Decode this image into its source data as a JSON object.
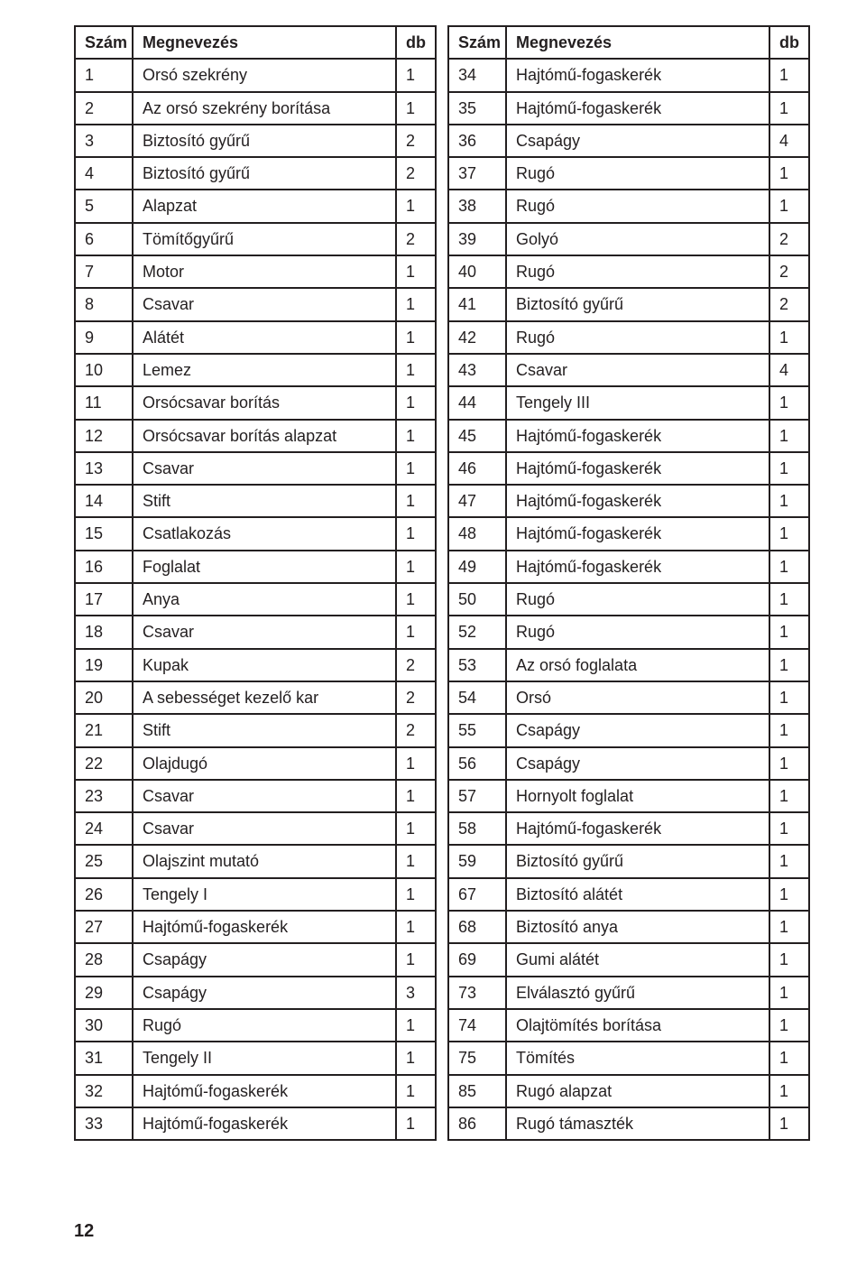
{
  "headers": {
    "szam": "Szám",
    "megnevezes": "Megnevezés",
    "db": "db"
  },
  "left": [
    {
      "n": "1",
      "name": "Orsó szekrény",
      "db": "1"
    },
    {
      "n": "2",
      "name": "Az orsó szekrény borítása",
      "db": "1"
    },
    {
      "n": "3",
      "name": "Biztosító gyűrű",
      "db": "2"
    },
    {
      "n": "4",
      "name": "Biztosító gyűrű",
      "db": "2"
    },
    {
      "n": "5",
      "name": "Alapzat",
      "db": "1"
    },
    {
      "n": "6",
      "name": "Tömítőgyűrű",
      "db": "2"
    },
    {
      "n": "7",
      "name": "Motor",
      "db": "1"
    },
    {
      "n": "8",
      "name": "Csavar",
      "db": "1"
    },
    {
      "n": "9",
      "name": "Alátét",
      "db": "1"
    },
    {
      "n": "10",
      "name": "Lemez",
      "db": "1"
    },
    {
      "n": "11",
      "name": "Orsócsavar borítás",
      "db": "1"
    },
    {
      "n": "12",
      "name": "Orsócsavar borítás alapzat",
      "db": "1"
    },
    {
      "n": "13",
      "name": "Csavar",
      "db": "1"
    },
    {
      "n": "14",
      "name": "Stift",
      "db": "1"
    },
    {
      "n": "15",
      "name": "Csatlakozás",
      "db": "1"
    },
    {
      "n": "16",
      "name": "Foglalat",
      "db": "1"
    },
    {
      "n": "17",
      "name": "Anya",
      "db": "1"
    },
    {
      "n": "18",
      "name": "Csavar",
      "db": "1"
    },
    {
      "n": "19",
      "name": "Kupak",
      "db": "2"
    },
    {
      "n": "20",
      "name": "A sebességet kezelő kar",
      "db": "2"
    },
    {
      "n": "21",
      "name": "Stift",
      "db": "2"
    },
    {
      "n": "22",
      "name": "Olajdugó",
      "db": "1"
    },
    {
      "n": "23",
      "name": "Csavar",
      "db": "1"
    },
    {
      "n": "24",
      "name": "Csavar",
      "db": "1"
    },
    {
      "n": "25",
      "name": "Olajszint mutató",
      "db": "1"
    },
    {
      "n": "26",
      "name": "Tengely I",
      "db": "1"
    },
    {
      "n": "27",
      "name": "Hajtómű-fogaskerék",
      "db": "1"
    },
    {
      "n": "28",
      "name": "Csapágy",
      "db": "1"
    },
    {
      "n": "29",
      "name": "Csapágy",
      "db": "3"
    },
    {
      "n": "30",
      "name": "Rugó",
      "db": "1"
    },
    {
      "n": "31",
      "name": "Tengely II",
      "db": "1"
    },
    {
      "n": "32",
      "name": "Hajtómű-fogaskerék",
      "db": "1"
    },
    {
      "n": "33",
      "name": "Hajtómű-fogaskerék",
      "db": "1"
    }
  ],
  "right": [
    {
      "n": "34",
      "name": "Hajtómű-fogaskerék",
      "db": "1"
    },
    {
      "n": "35",
      "name": "Hajtómű-fogaskerék",
      "db": "1"
    },
    {
      "n": "36",
      "name": "Csapágy",
      "db": "4"
    },
    {
      "n": "37",
      "name": "Rugó",
      "db": "1"
    },
    {
      "n": "38",
      "name": "Rugó",
      "db": "1"
    },
    {
      "n": "39",
      "name": "Golyó",
      "db": "2"
    },
    {
      "n": "40",
      "name": "Rugó",
      "db": "2"
    },
    {
      "n": "41",
      "name": "Biztosító gyűrű",
      "db": "2"
    },
    {
      "n": "42",
      "name": "Rugó",
      "db": "1"
    },
    {
      "n": "43",
      "name": "Csavar",
      "db": "4"
    },
    {
      "n": "44",
      "name": "Tengely III",
      "db": "1"
    },
    {
      "n": "45",
      "name": "Hajtómű-fogaskerék",
      "db": "1"
    },
    {
      "n": "46",
      "name": "Hajtómű-fogaskerék",
      "db": "1"
    },
    {
      "n": "47",
      "name": "Hajtómű-fogaskerék",
      "db": "1"
    },
    {
      "n": "48",
      "name": "Hajtómű-fogaskerék",
      "db": "1"
    },
    {
      "n": "49",
      "name": "Hajtómű-fogaskerék",
      "db": "1"
    },
    {
      "n": "50",
      "name": "Rugó",
      "db": "1"
    },
    {
      "n": "52",
      "name": "Rugó",
      "db": "1"
    },
    {
      "n": "53",
      "name": "Az orsó foglalata",
      "db": "1"
    },
    {
      "n": "54",
      "name": "Orsó",
      "db": "1"
    },
    {
      "n": "55",
      "name": "Csapágy",
      "db": "1"
    },
    {
      "n": "56",
      "name": "Csapágy",
      "db": "1"
    },
    {
      "n": "57",
      "name": "Hornyolt foglalat",
      "db": "1"
    },
    {
      "n": "58",
      "name": "Hajtómű-fogaskerék",
      "db": "1"
    },
    {
      "n": "59",
      "name": "Biztosító gyűrű",
      "db": "1"
    },
    {
      "n": "67",
      "name": "Biztosító alátét",
      "db": "1"
    },
    {
      "n": "68",
      "name": "Biztosító anya",
      "db": "1"
    },
    {
      "n": "69",
      "name": "Gumi alátét",
      "db": "1"
    },
    {
      "n": "73",
      "name": "Elválasztó gyűrű",
      "db": "1"
    },
    {
      "n": "74",
      "name": "Olajtömítés borítása",
      "db": "1"
    },
    {
      "n": "75",
      "name": "Tömítés",
      "db": "1"
    },
    {
      "n": "85",
      "name": "Rugó alapzat",
      "db": "1"
    },
    {
      "n": "86",
      "name": "Rugó támaszték",
      "db": "1"
    }
  ],
  "pageNumber": "12"
}
